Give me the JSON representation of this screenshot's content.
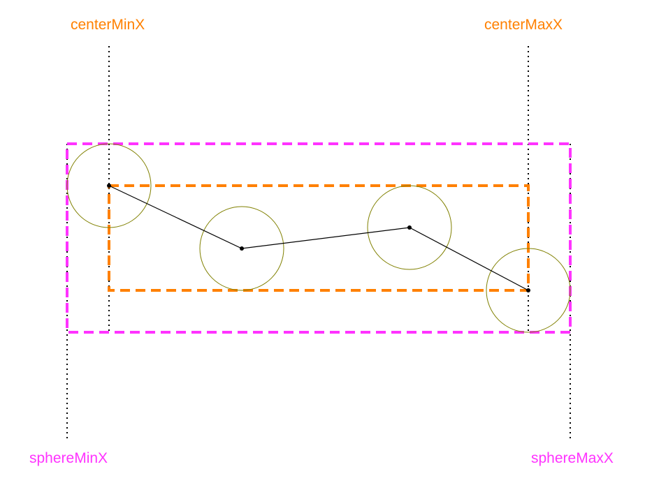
{
  "labels": {
    "center_min_x": "centerMinX",
    "center_max_x": "centerMaxX",
    "sphere_min_x": "sphereMinX",
    "sphere_max_x": "sphereMaxX"
  },
  "colors": {
    "center_bounds": "#ff8000",
    "sphere_bounds": "#ff33ff",
    "sphere_outline": "#808000",
    "path_line": "#000000",
    "guide_line": "#000000"
  }
}
